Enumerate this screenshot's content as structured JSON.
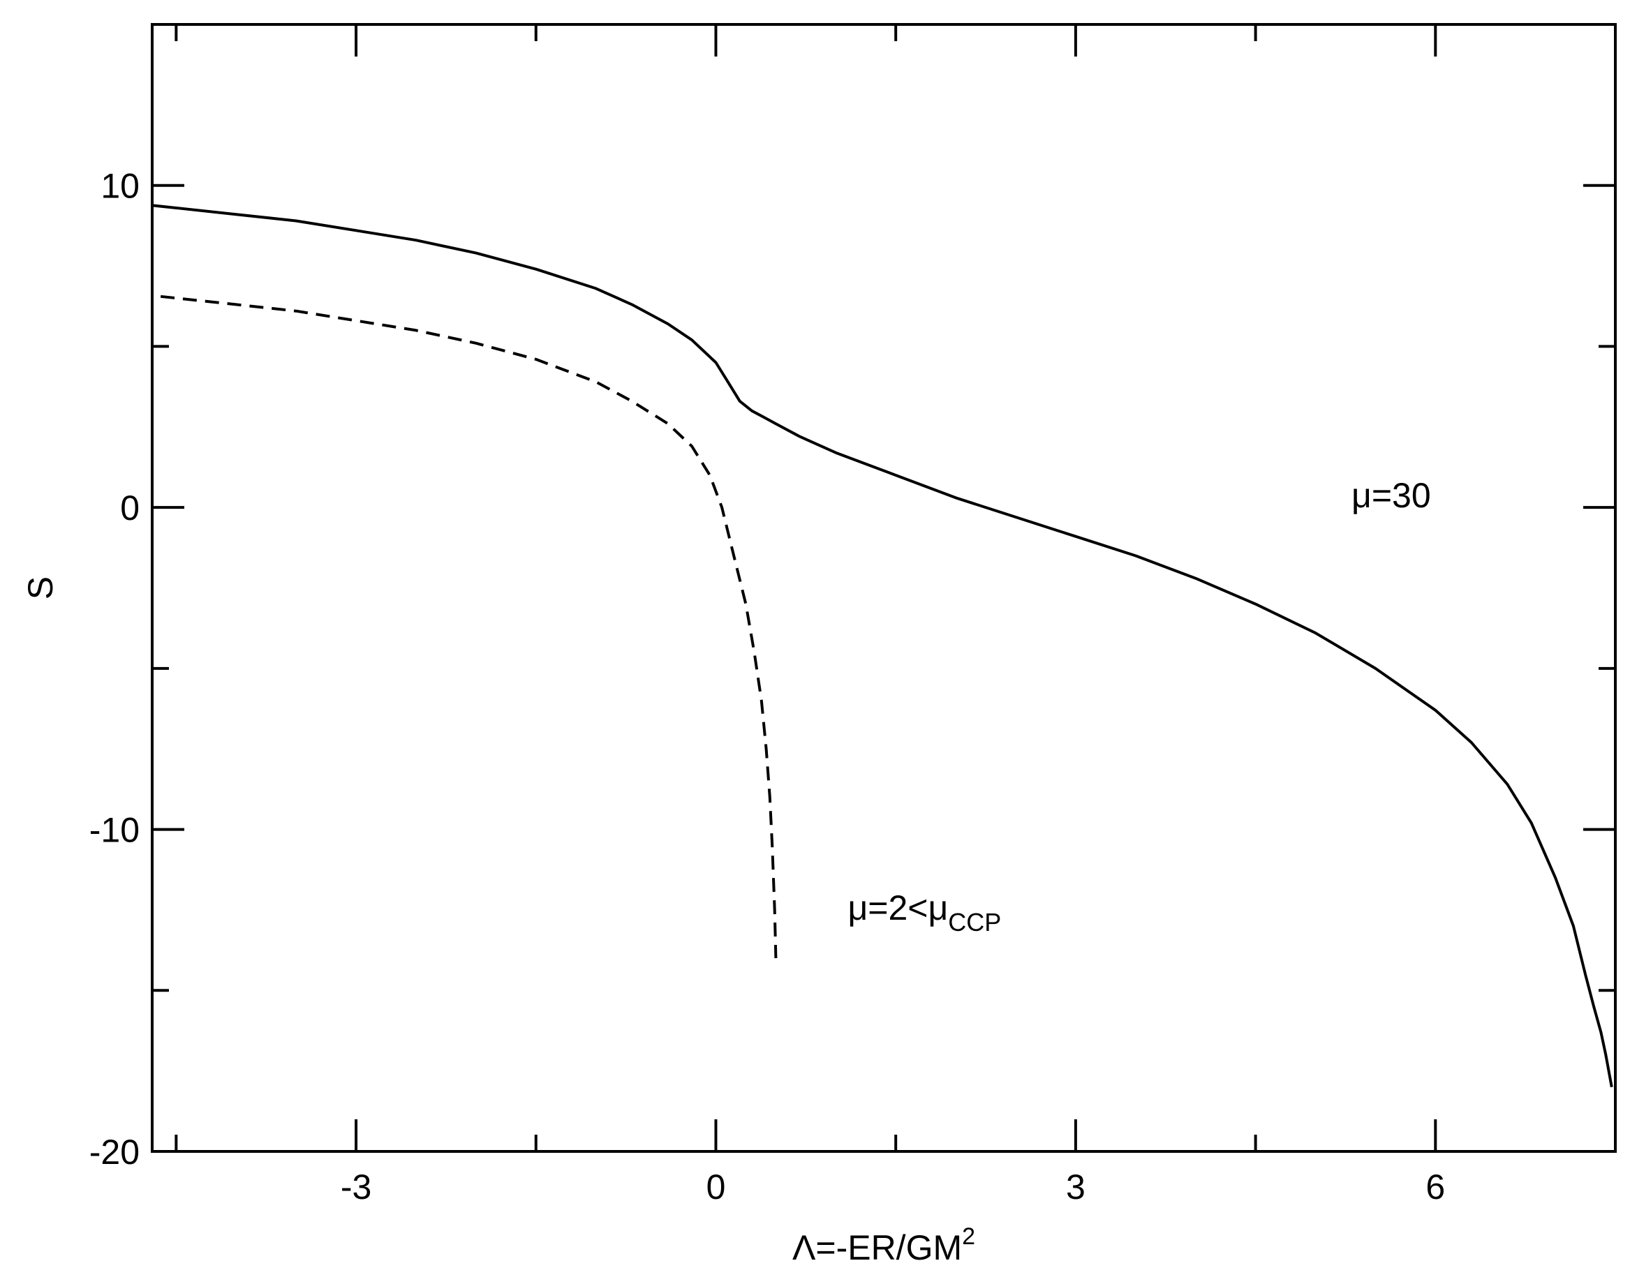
{
  "chart_data": {
    "type": "line",
    "title": "",
    "xlabel": {
      "main": "Λ=-ER/GM",
      "superscript": "2"
    },
    "ylabel": "S",
    "xlim": [
      -4.7,
      7.5
    ],
    "ylim": [
      -20,
      15
    ],
    "xticks_major": [
      -3,
      0,
      3,
      6
    ],
    "xtick_labels": [
      "-3",
      "0",
      "3",
      "6"
    ],
    "xticks_minor": [
      -4.5,
      -1.5,
      1.5,
      4.5,
      7.5
    ],
    "yticks_major": [
      -20,
      -10,
      0,
      10
    ],
    "ytick_labels": [
      "-20",
      "-10",
      "0",
      "10"
    ],
    "yticks_minor": [
      -15,
      -5,
      5
    ],
    "grid": false,
    "legend": "none",
    "series": [
      {
        "style": "solid",
        "color": "#000000",
        "x": [
          -5.0,
          -4.5,
          -4.0,
          -3.5,
          -3.0,
          -2.5,
          -2.0,
          -1.5,
          -1.0,
          -0.7,
          -0.4,
          -0.2,
          0.0,
          0.1,
          0.2,
          0.3,
          0.4,
          0.5,
          0.7,
          1.0,
          1.5,
          2.0,
          2.5,
          3.0,
          3.5,
          4.0,
          4.5,
          5.0,
          5.5,
          6.0,
          6.3,
          6.6,
          6.8,
          7.0,
          7.15,
          7.25,
          7.32,
          7.38,
          7.42,
          7.45,
          7.47
        ],
        "values": [
          9.5,
          9.3,
          9.1,
          8.9,
          8.6,
          8.3,
          7.9,
          7.4,
          6.8,
          6.3,
          5.7,
          5.2,
          4.5,
          3.9,
          3.3,
          3.0,
          2.8,
          2.6,
          2.2,
          1.7,
          1.0,
          0.3,
          -0.3,
          -0.9,
          -1.5,
          -2.2,
          -3.0,
          -3.9,
          -5.0,
          -6.3,
          -7.3,
          -8.6,
          -9.8,
          -11.5,
          -13.0,
          -14.5,
          -15.5,
          -16.3,
          -17.0,
          -17.6,
          -18.0
        ]
      },
      {
        "style": "dashed",
        "color": "#000000",
        "x": [
          -5.0,
          -4.5,
          -4.0,
          -3.5,
          -3.0,
          -2.5,
          -2.0,
          -1.5,
          -1.0,
          -0.7,
          -0.4,
          -0.2,
          -0.05,
          0.05,
          0.15,
          0.25,
          0.32,
          0.38,
          0.42,
          0.45,
          0.47,
          0.49,
          0.5
        ],
        "values": [
          6.7,
          6.5,
          6.3,
          6.1,
          5.8,
          5.5,
          5.1,
          4.6,
          3.9,
          3.3,
          2.6,
          1.9,
          1.0,
          0.0,
          -1.5,
          -3.0,
          -4.5,
          -6.0,
          -7.5,
          -9.0,
          -10.5,
          -12.5,
          -14.0
        ]
      }
    ],
    "annotations": [
      {
        "text": "μ=30",
        "x": 5.3,
        "y": 0.0
      },
      {
        "text": "μ=2<μ",
        "subscript": "CCP",
        "x": 1.1,
        "y": -12.8
      }
    ]
  }
}
